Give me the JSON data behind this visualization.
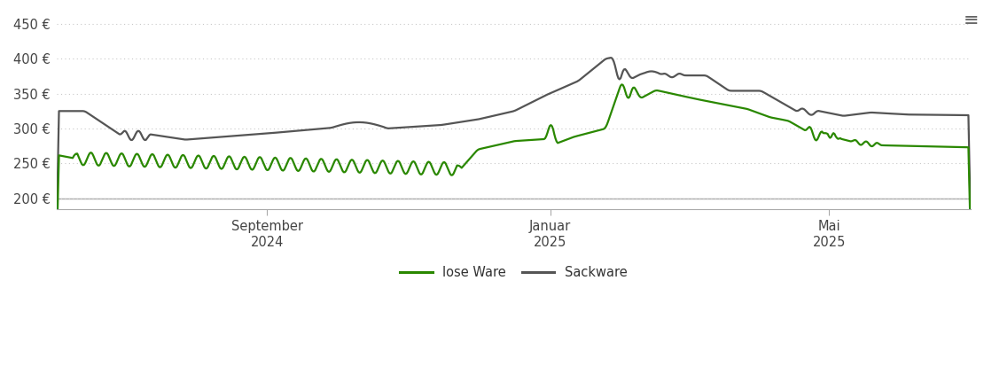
{
  "background_color": "#ffffff",
  "plot_bg_color": "#ffffff",
  "grid_color": "#c8c8c8",
  "y_ticks": [
    200,
    250,
    300,
    350,
    400,
    450
  ],
  "y_tick_labels": [
    "200 €",
    "250 €",
    "300 €",
    "350 €",
    "400 €",
    "450 €"
  ],
  "ylim": [
    185,
    465
  ],
  "x_tick_labels": [
    "September\n2024",
    "Januar\n2025",
    "Mai\n2025"
  ],
  "x_tick_pos": [
    0.23,
    0.54,
    0.845
  ],
  "legend_labels": [
    "lose Ware",
    "Sackware"
  ],
  "legend_colors": [
    "#2a8800",
    "#555555"
  ],
  "line_lose_color": "#2a8800",
  "line_sack_color": "#555555",
  "line_width": 1.6
}
